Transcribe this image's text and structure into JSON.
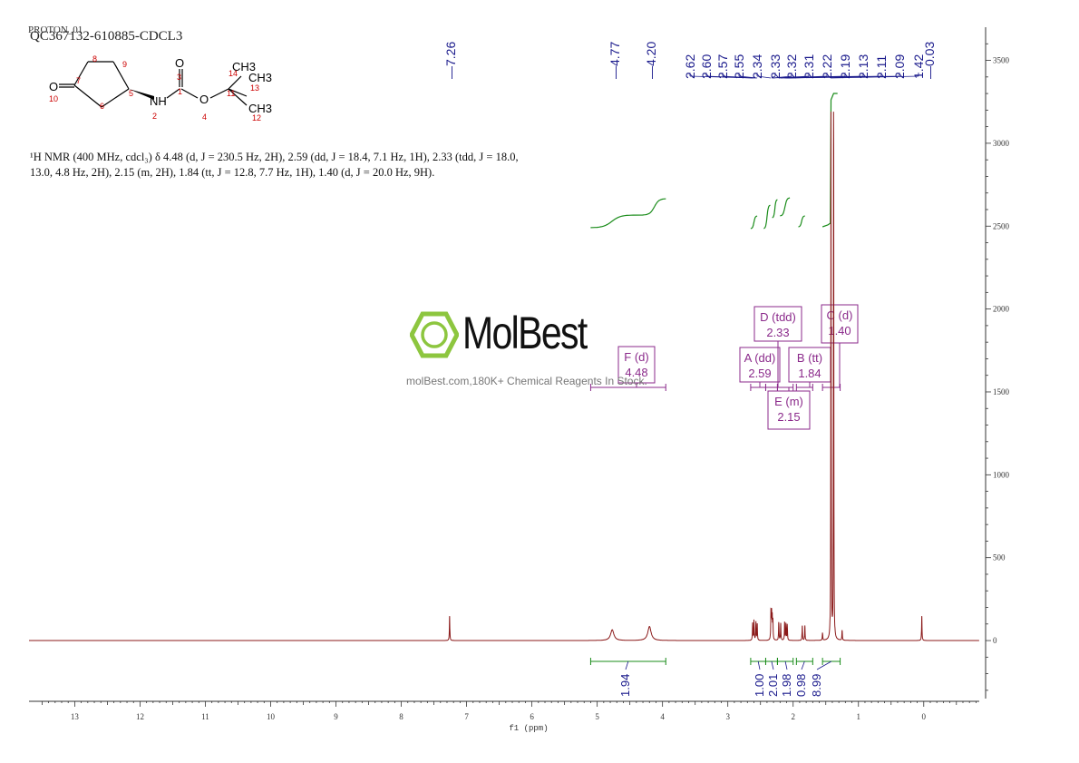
{
  "header": {
    "proton_label": "PROTON_01",
    "sample_title": "QC367132-610885-CDCL3"
  },
  "molecule": {
    "atoms": [
      "O",
      "8",
      "9",
      "10",
      "7",
      "5",
      "6",
      "3",
      "1",
      "NH",
      "2",
      "O",
      "4",
      "11",
      "CH3",
      "14",
      "CH3",
      "13",
      "CH3",
      "12",
      "O"
    ]
  },
  "nmr_summary": "¹H NMR (400 MHz, cdcl₃) δ 4.48 (d, J = 230.5 Hz, 2H), 2.59 (dd, J = 18.4, 7.1 Hz, 1H), 2.33 (tdd, J = 18.0, 13.0, 4.8 Hz, 2H), 2.15 (m, 2H), 1.84 (tt, J = 12.8, 7.7 Hz, 1H), 1.40 (d, J = 20.0 Hz, 9H).",
  "logo": {
    "name": "MolBest",
    "tagline": "molBest.com,180K+ Chemical Reagents In Stock."
  },
  "colors": {
    "spectrum": "#8b1a1a",
    "integral": "#1a8c1a",
    "peak_label": "#1a1a8c",
    "multiplet": "#8b2a8b",
    "logo_green": "#8dc63f"
  },
  "chart_data": {
    "type": "line",
    "xlabel": "f1 (ppm)",
    "x_reversed": true,
    "xlim": [
      13.7,
      -0.85
    ],
    "x_ticks": [
      13,
      12,
      11,
      10,
      9,
      8,
      7,
      6,
      5,
      4,
      3,
      2,
      1,
      0
    ],
    "ylim": [
      -350,
      3700
    ],
    "y_ticks": [
      0,
      500,
      1000,
      1500,
      2000,
      2500,
      3000,
      3500
    ],
    "peaks": [
      {
        "ppm": 7.26,
        "height": 150,
        "width": 0.004
      },
      {
        "ppm": 4.77,
        "height": 65,
        "width": 0.03
      },
      {
        "ppm": 4.2,
        "height": 85,
        "width": 0.03
      },
      {
        "ppm": 2.62,
        "height": 105,
        "width": 0.004
      },
      {
        "ppm": 2.6,
        "height": 120,
        "width": 0.004
      },
      {
        "ppm": 2.57,
        "height": 110,
        "width": 0.004
      },
      {
        "ppm": 2.55,
        "height": 100,
        "width": 0.004
      },
      {
        "ppm": 2.34,
        "height": 170,
        "width": 0.004
      },
      {
        "ppm": 2.33,
        "height": 150,
        "width": 0.004
      },
      {
        "ppm": 2.32,
        "height": 130,
        "width": 0.004
      },
      {
        "ppm": 2.31,
        "height": 110,
        "width": 0.004
      },
      {
        "ppm": 2.22,
        "height": 110,
        "width": 0.004
      },
      {
        "ppm": 2.19,
        "height": 105,
        "width": 0.004
      },
      {
        "ppm": 2.13,
        "height": 110,
        "width": 0.004
      },
      {
        "ppm": 2.11,
        "height": 100,
        "width": 0.004
      },
      {
        "ppm": 2.09,
        "height": 95,
        "width": 0.004
      },
      {
        "ppm": 1.86,
        "height": 90,
        "width": 0.004
      },
      {
        "ppm": 1.82,
        "height": 90,
        "width": 0.004
      },
      {
        "ppm": 1.42,
        "height": 3260,
        "width": 0.003
      },
      {
        "ppm": 1.38,
        "height": 3260,
        "width": 0.003
      },
      {
        "ppm": 1.55,
        "height": 45,
        "width": 0.004
      },
      {
        "ppm": 1.25,
        "height": 60,
        "width": 0.004
      },
      {
        "ppm": 0.03,
        "height": 150,
        "width": 0.004
      }
    ],
    "peak_labels": [
      "7.26",
      "4.77",
      "4.20",
      "2.62",
      "2.60",
      "2.57",
      "2.55",
      "2.34",
      "2.33",
      "2.32",
      "2.31",
      "2.22",
      "2.19",
      "2.13",
      "2.11",
      "2.09",
      "1.42",
      "0.03"
    ],
    "multiplets": [
      {
        "id": "F",
        "type": "d",
        "shift": "4.48",
        "range": [
          5.1,
          3.95
        ]
      },
      {
        "id": "A",
        "type": "dd",
        "shift": "2.59",
        "range": [
          2.65,
          2.42
        ]
      },
      {
        "id": "D",
        "type": "tdd",
        "shift": "2.33",
        "range": [
          2.42,
          2.24
        ]
      },
      {
        "id": "E",
        "type": "m",
        "shift": "2.15",
        "range": [
          2.24,
          2.0
        ]
      },
      {
        "id": "B",
        "type": "tt",
        "shift": "1.84",
        "range": [
          1.95,
          1.7
        ]
      },
      {
        "id": "C",
        "type": "d",
        "shift": "1.40",
        "range": [
          1.55,
          1.28
        ]
      }
    ],
    "integrals": [
      {
        "value": "1.94",
        "range": [
          5.1,
          3.95
        ]
      },
      {
        "value": "1.00",
        "range": [
          2.65,
          2.42
        ]
      },
      {
        "value": "2.01",
        "range": [
          2.42,
          2.24
        ]
      },
      {
        "value": "1.98",
        "range": [
          2.24,
          2.0
        ]
      },
      {
        "value": "0.98",
        "range": [
          1.95,
          1.7
        ]
      },
      {
        "value": "8.99",
        "range": [
          1.55,
          1.28
        ]
      }
    ]
  }
}
